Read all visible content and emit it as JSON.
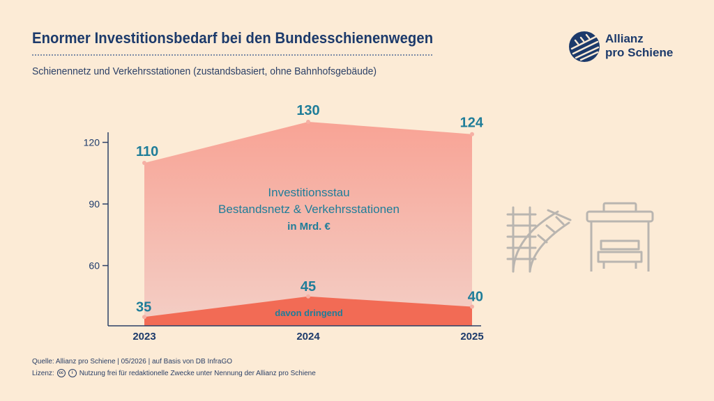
{
  "header": {
    "title": "Enormer Investitionsbedarf bei den Bundesschienenwegen",
    "subtitle": "Schienennetz und Verkehrsstationen (zustandsbasiert, ohne Bahnhofsgebäude)"
  },
  "logo": {
    "line1": "Allianz",
    "line2": "pro Schiene"
  },
  "chart_data": {
    "type": "area",
    "categories": [
      "2023",
      "2024",
      "2025"
    ],
    "series": [
      {
        "name": "Investitionsstau Bestandsnetz & Verkehrsstationen",
        "values": [
          110,
          130,
          124
        ],
        "color": "#f7a79a"
      },
      {
        "name": "davon dringend",
        "values": [
          35,
          45,
          40
        ],
        "color": "#f26b55"
      }
    ],
    "y_ticks": [
      60,
      90,
      120
    ],
    "area_label_line1": "Investitionsstau",
    "area_label_line2": "Bestandsnetz & Verkehrsstationen",
    "area_label_unit": "in Mrd. €",
    "urgent_label": "davon dringend",
    "grid": false
  },
  "footer": {
    "source": "Quelle: Allianz pro Schiene | 05/2026 | auf Basis von DB InfraGO",
    "license_prefix": "Lizenz:",
    "license_text": "Nutzung frei für redaktionelle Zwecke unter Nennung der Allianz pro Schiene"
  },
  "colors": {
    "accent": "#1c3a6b",
    "value_label": "#1f7d99",
    "background": "#fcebd6"
  },
  "icons": [
    "rail-switch-icon",
    "train-station-icon"
  ]
}
